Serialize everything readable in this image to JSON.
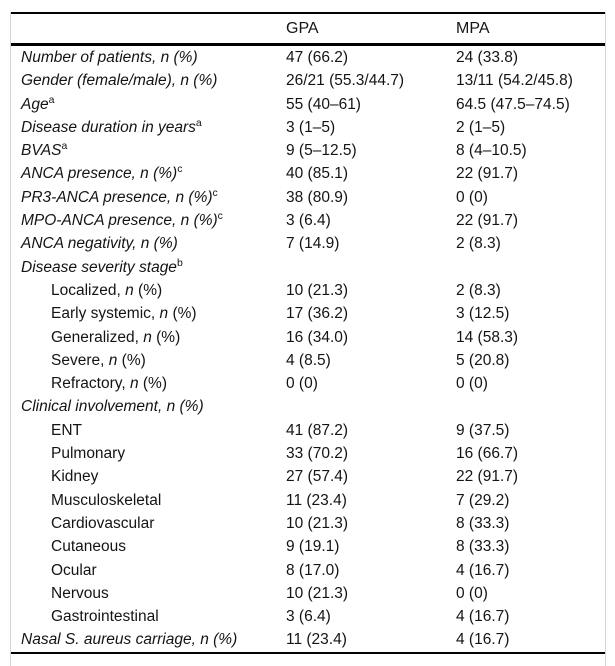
{
  "figure": {
    "columns": {
      "col1": "",
      "col2": "GPA",
      "col3": "MPA"
    },
    "rows": [
      {
        "parts": [
          {
            "t": "Number of patients, n (%)",
            "i": true
          }
        ],
        "sup": "",
        "indent": false,
        "gpa": "47 (66.2)",
        "mpa": "24 (33.8)"
      },
      {
        "parts": [
          {
            "t": "Gender (female/male), n (%)",
            "i": true
          }
        ],
        "sup": "",
        "indent": false,
        "gpa": "26/21 (55.3/44.7)",
        "mpa": "13/11 (54.2/45.8)"
      },
      {
        "parts": [
          {
            "t": "Age",
            "i": true
          }
        ],
        "sup": "a",
        "indent": false,
        "gpa": "55 (40–61)",
        "mpa": "64.5 (47.5–74.5)"
      },
      {
        "parts": [
          {
            "t": "Disease duration in years",
            "i": true
          }
        ],
        "sup": "a",
        "indent": false,
        "gpa": "3 (1–5)",
        "mpa": "2 (1–5)"
      },
      {
        "parts": [
          {
            "t": "BVAS",
            "i": true
          }
        ],
        "sup": "a",
        "indent": false,
        "gpa": "9 (5–12.5)",
        "mpa": "8 (4–10.5)"
      },
      {
        "parts": [
          {
            "t": "ANCA presence, n (%)",
            "i": true
          }
        ],
        "sup": "c",
        "indent": false,
        "gpa": "40 (85.1)",
        "mpa": "22 (91.7)"
      },
      {
        "parts": [
          {
            "t": "PR3-ANCA presence, n (%)",
            "i": true
          }
        ],
        "sup": "c",
        "indent": false,
        "gpa": "38 (80.9)",
        "mpa": "0 (0)"
      },
      {
        "parts": [
          {
            "t": "MPO-ANCA presence, n (%)",
            "i": true
          }
        ],
        "sup": "c",
        "indent": false,
        "gpa": "3 (6.4)",
        "mpa": "22 (91.7)"
      },
      {
        "parts": [
          {
            "t": "ANCA negativity, n (%)",
            "i": true
          }
        ],
        "sup": "",
        "indent": false,
        "gpa": "7 (14.9)",
        "mpa": "2 (8.3)"
      },
      {
        "parts": [
          {
            "t": "Disease severity stage",
            "i": true
          }
        ],
        "sup": "b",
        "indent": false,
        "gpa": "",
        "mpa": ""
      },
      {
        "parts": [
          {
            "t": "Localized, ",
            "i": false
          },
          {
            "t": "n",
            "i": true
          },
          {
            "t": " (%)",
            "i": false
          }
        ],
        "sup": "",
        "indent": true,
        "gpa": "10 (21.3)",
        "mpa": "2 (8.3)"
      },
      {
        "parts": [
          {
            "t": "Early systemic, ",
            "i": false
          },
          {
            "t": "n",
            "i": true
          },
          {
            "t": " (%)",
            "i": false
          }
        ],
        "sup": "",
        "indent": true,
        "gpa": "17 (36.2)",
        "mpa": "3 (12.5)"
      },
      {
        "parts": [
          {
            "t": "Generalized, ",
            "i": false
          },
          {
            "t": "n",
            "i": true
          },
          {
            "t": " (%)",
            "i": false
          }
        ],
        "sup": "",
        "indent": true,
        "gpa": "16 (34.0)",
        "mpa": "14 (58.3)"
      },
      {
        "parts": [
          {
            "t": "Severe, ",
            "i": false
          },
          {
            "t": "n",
            "i": true
          },
          {
            "t": " (%)",
            "i": false
          }
        ],
        "sup": "",
        "indent": true,
        "gpa": "4 (8.5)",
        "mpa": "5 (20.8)"
      },
      {
        "parts": [
          {
            "t": "Refractory, ",
            "i": false
          },
          {
            "t": "n",
            "i": true
          },
          {
            "t": " (%)",
            "i": false
          }
        ],
        "sup": "",
        "indent": true,
        "gpa": "0 (0)",
        "mpa": "0 (0)"
      },
      {
        "parts": [
          {
            "t": "Clinical involvement, n (%)",
            "i": true
          }
        ],
        "sup": "",
        "indent": false,
        "gpa": "",
        "mpa": ""
      },
      {
        "parts": [
          {
            "t": "ENT",
            "i": false
          }
        ],
        "sup": "",
        "indent": true,
        "gpa": "41 (87.2)",
        "mpa": "9 (37.5)"
      },
      {
        "parts": [
          {
            "t": "Pulmonary",
            "i": false
          }
        ],
        "sup": "",
        "indent": true,
        "gpa": "33 (70.2)",
        "mpa": "16 (66.7)"
      },
      {
        "parts": [
          {
            "t": "Kidney",
            "i": false
          }
        ],
        "sup": "",
        "indent": true,
        "gpa": "27 (57.4)",
        "mpa": "22 (91.7)"
      },
      {
        "parts": [
          {
            "t": "Musculoskeletal",
            "i": false
          }
        ],
        "sup": "",
        "indent": true,
        "gpa": "11 (23.4)",
        "mpa": "7 (29.2)"
      },
      {
        "parts": [
          {
            "t": "Cardiovascular",
            "i": false
          }
        ],
        "sup": "",
        "indent": true,
        "gpa": "10 (21.3)",
        "mpa": "8 (33.3)"
      },
      {
        "parts": [
          {
            "t": "Cutaneous",
            "i": false
          }
        ],
        "sup": "",
        "indent": true,
        "gpa": "9 (19.1)",
        "mpa": "8 (33.3)"
      },
      {
        "parts": [
          {
            "t": "Ocular",
            "i": false
          }
        ],
        "sup": "",
        "indent": true,
        "gpa": "8 (17.0)",
        "mpa": "4 (16.7)"
      },
      {
        "parts": [
          {
            "t": "Nervous",
            "i": false
          }
        ],
        "sup": "",
        "indent": true,
        "gpa": "10 (21.3)",
        "mpa": "0 (0)"
      },
      {
        "parts": [
          {
            "t": "Gastrointestinal",
            "i": false
          }
        ],
        "sup": "",
        "indent": true,
        "gpa": "3 (6.4)",
        "mpa": "4 (16.7)"
      },
      {
        "parts": [
          {
            "t": "Nasal S. aureus carriage, n (%)",
            "i": true
          }
        ],
        "sup": "",
        "indent": false,
        "gpa": "11 (23.4)",
        "mpa": "4 (16.7)"
      }
    ]
  }
}
